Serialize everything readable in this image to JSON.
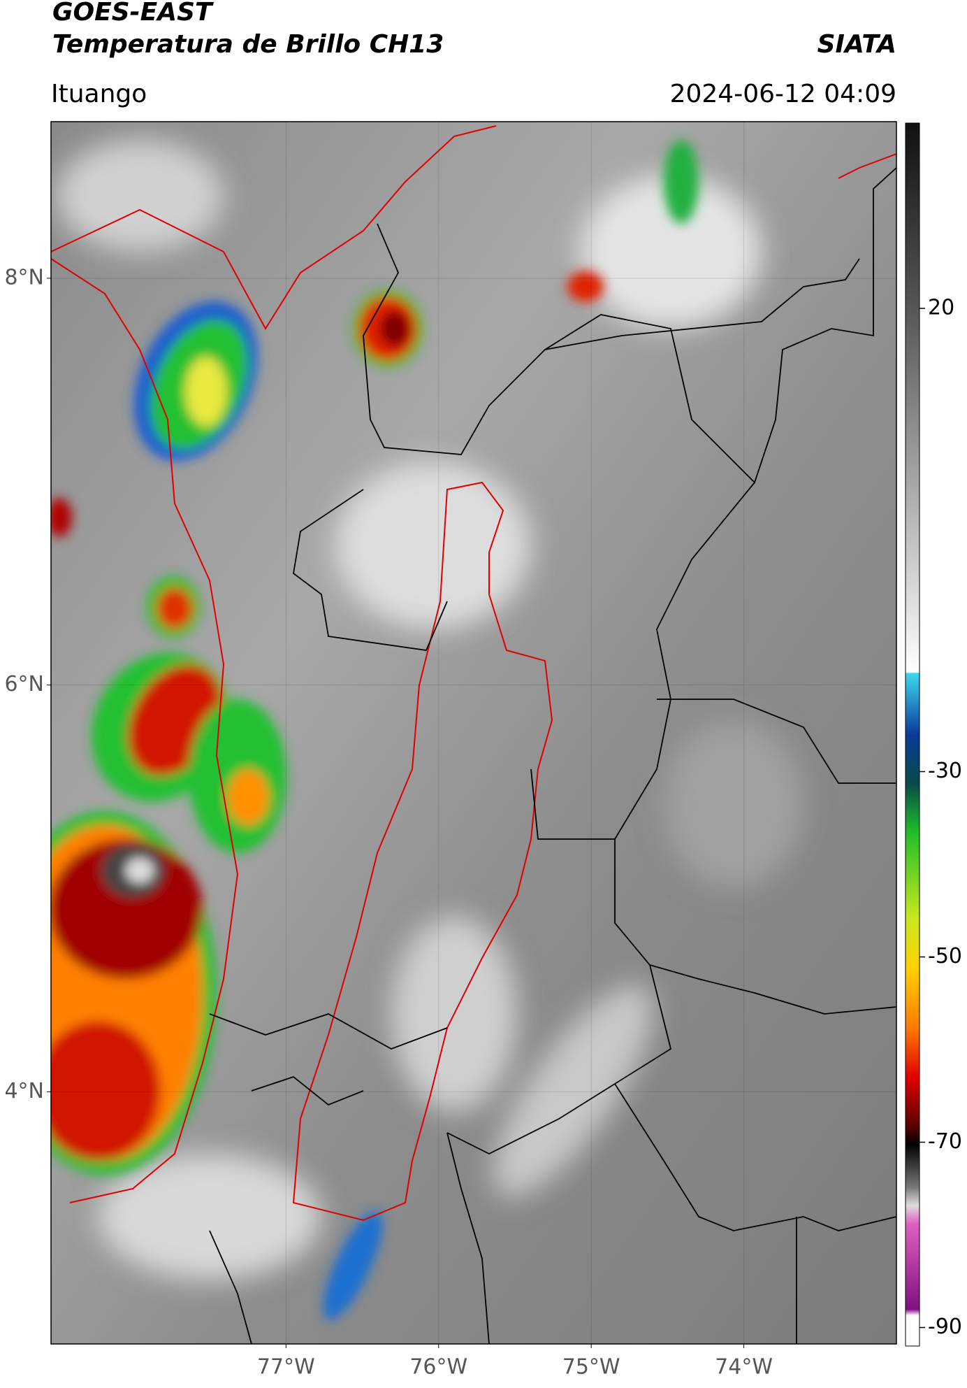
{
  "header": {
    "title": "GOES-EAST",
    "subtitle": "Temperatura de Brillo CH13",
    "source": "SIATA",
    "location": "Ituango",
    "datetime": "2024-06-12 04:09"
  },
  "map": {
    "latlim": [
      2.76,
      8.77
    ],
    "lonlim": [
      -78.54,
      -73.0
    ],
    "latticks": [
      {
        "value": 8,
        "label": "8°N"
      },
      {
        "value": 6,
        "label": "6°N"
      },
      {
        "value": 4,
        "label": "4°N"
      }
    ],
    "lonticks": [
      {
        "value": -77,
        "label": "77°W"
      },
      {
        "value": -76,
        "label": "76°W"
      },
      {
        "value": -75,
        "label": "75°W"
      },
      {
        "value": -74,
        "label": "74°W"
      }
    ]
  },
  "colorbar": {
    "lim": [
      -92,
      40
    ],
    "ticks": [
      20,
      -30,
      -50,
      -70,
      -90
    ]
  }
}
